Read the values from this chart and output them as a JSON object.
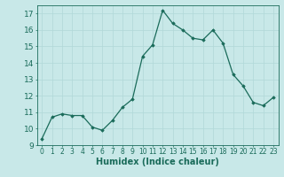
{
  "x": [
    0,
    1,
    2,
    3,
    4,
    5,
    6,
    7,
    8,
    9,
    10,
    11,
    12,
    13,
    14,
    15,
    16,
    17,
    18,
    19,
    20,
    21,
    22,
    23
  ],
  "y": [
    9.4,
    10.7,
    10.9,
    10.8,
    10.8,
    10.1,
    9.9,
    10.5,
    11.3,
    11.8,
    14.4,
    15.1,
    17.2,
    16.4,
    16.0,
    15.5,
    15.4,
    16.0,
    15.2,
    13.3,
    12.6,
    11.6,
    11.4,
    11.9
  ],
  "xlim": [
    -0.5,
    23.5
  ],
  "ylim": [
    9,
    17.5
  ],
  "yticks": [
    9,
    10,
    11,
    12,
    13,
    14,
    15,
    16,
    17
  ],
  "xticks": [
    0,
    1,
    2,
    3,
    4,
    5,
    6,
    7,
    8,
    9,
    10,
    11,
    12,
    13,
    14,
    15,
    16,
    17,
    18,
    19,
    20,
    21,
    22,
    23
  ],
  "xlabel": "Humidex (Indice chaleur)",
  "line_color": "#1a6b5a",
  "marker": "D",
  "marker_size": 1.8,
  "bg_color": "#c8e8e8",
  "grid_color": "#b0d8d8",
  "tick_color": "#1a6b5a",
  "label_color": "#1a6b5a",
  "xlabel_fontsize": 7,
  "ytick_fontsize": 6.5,
  "xtick_fontsize": 5.5
}
